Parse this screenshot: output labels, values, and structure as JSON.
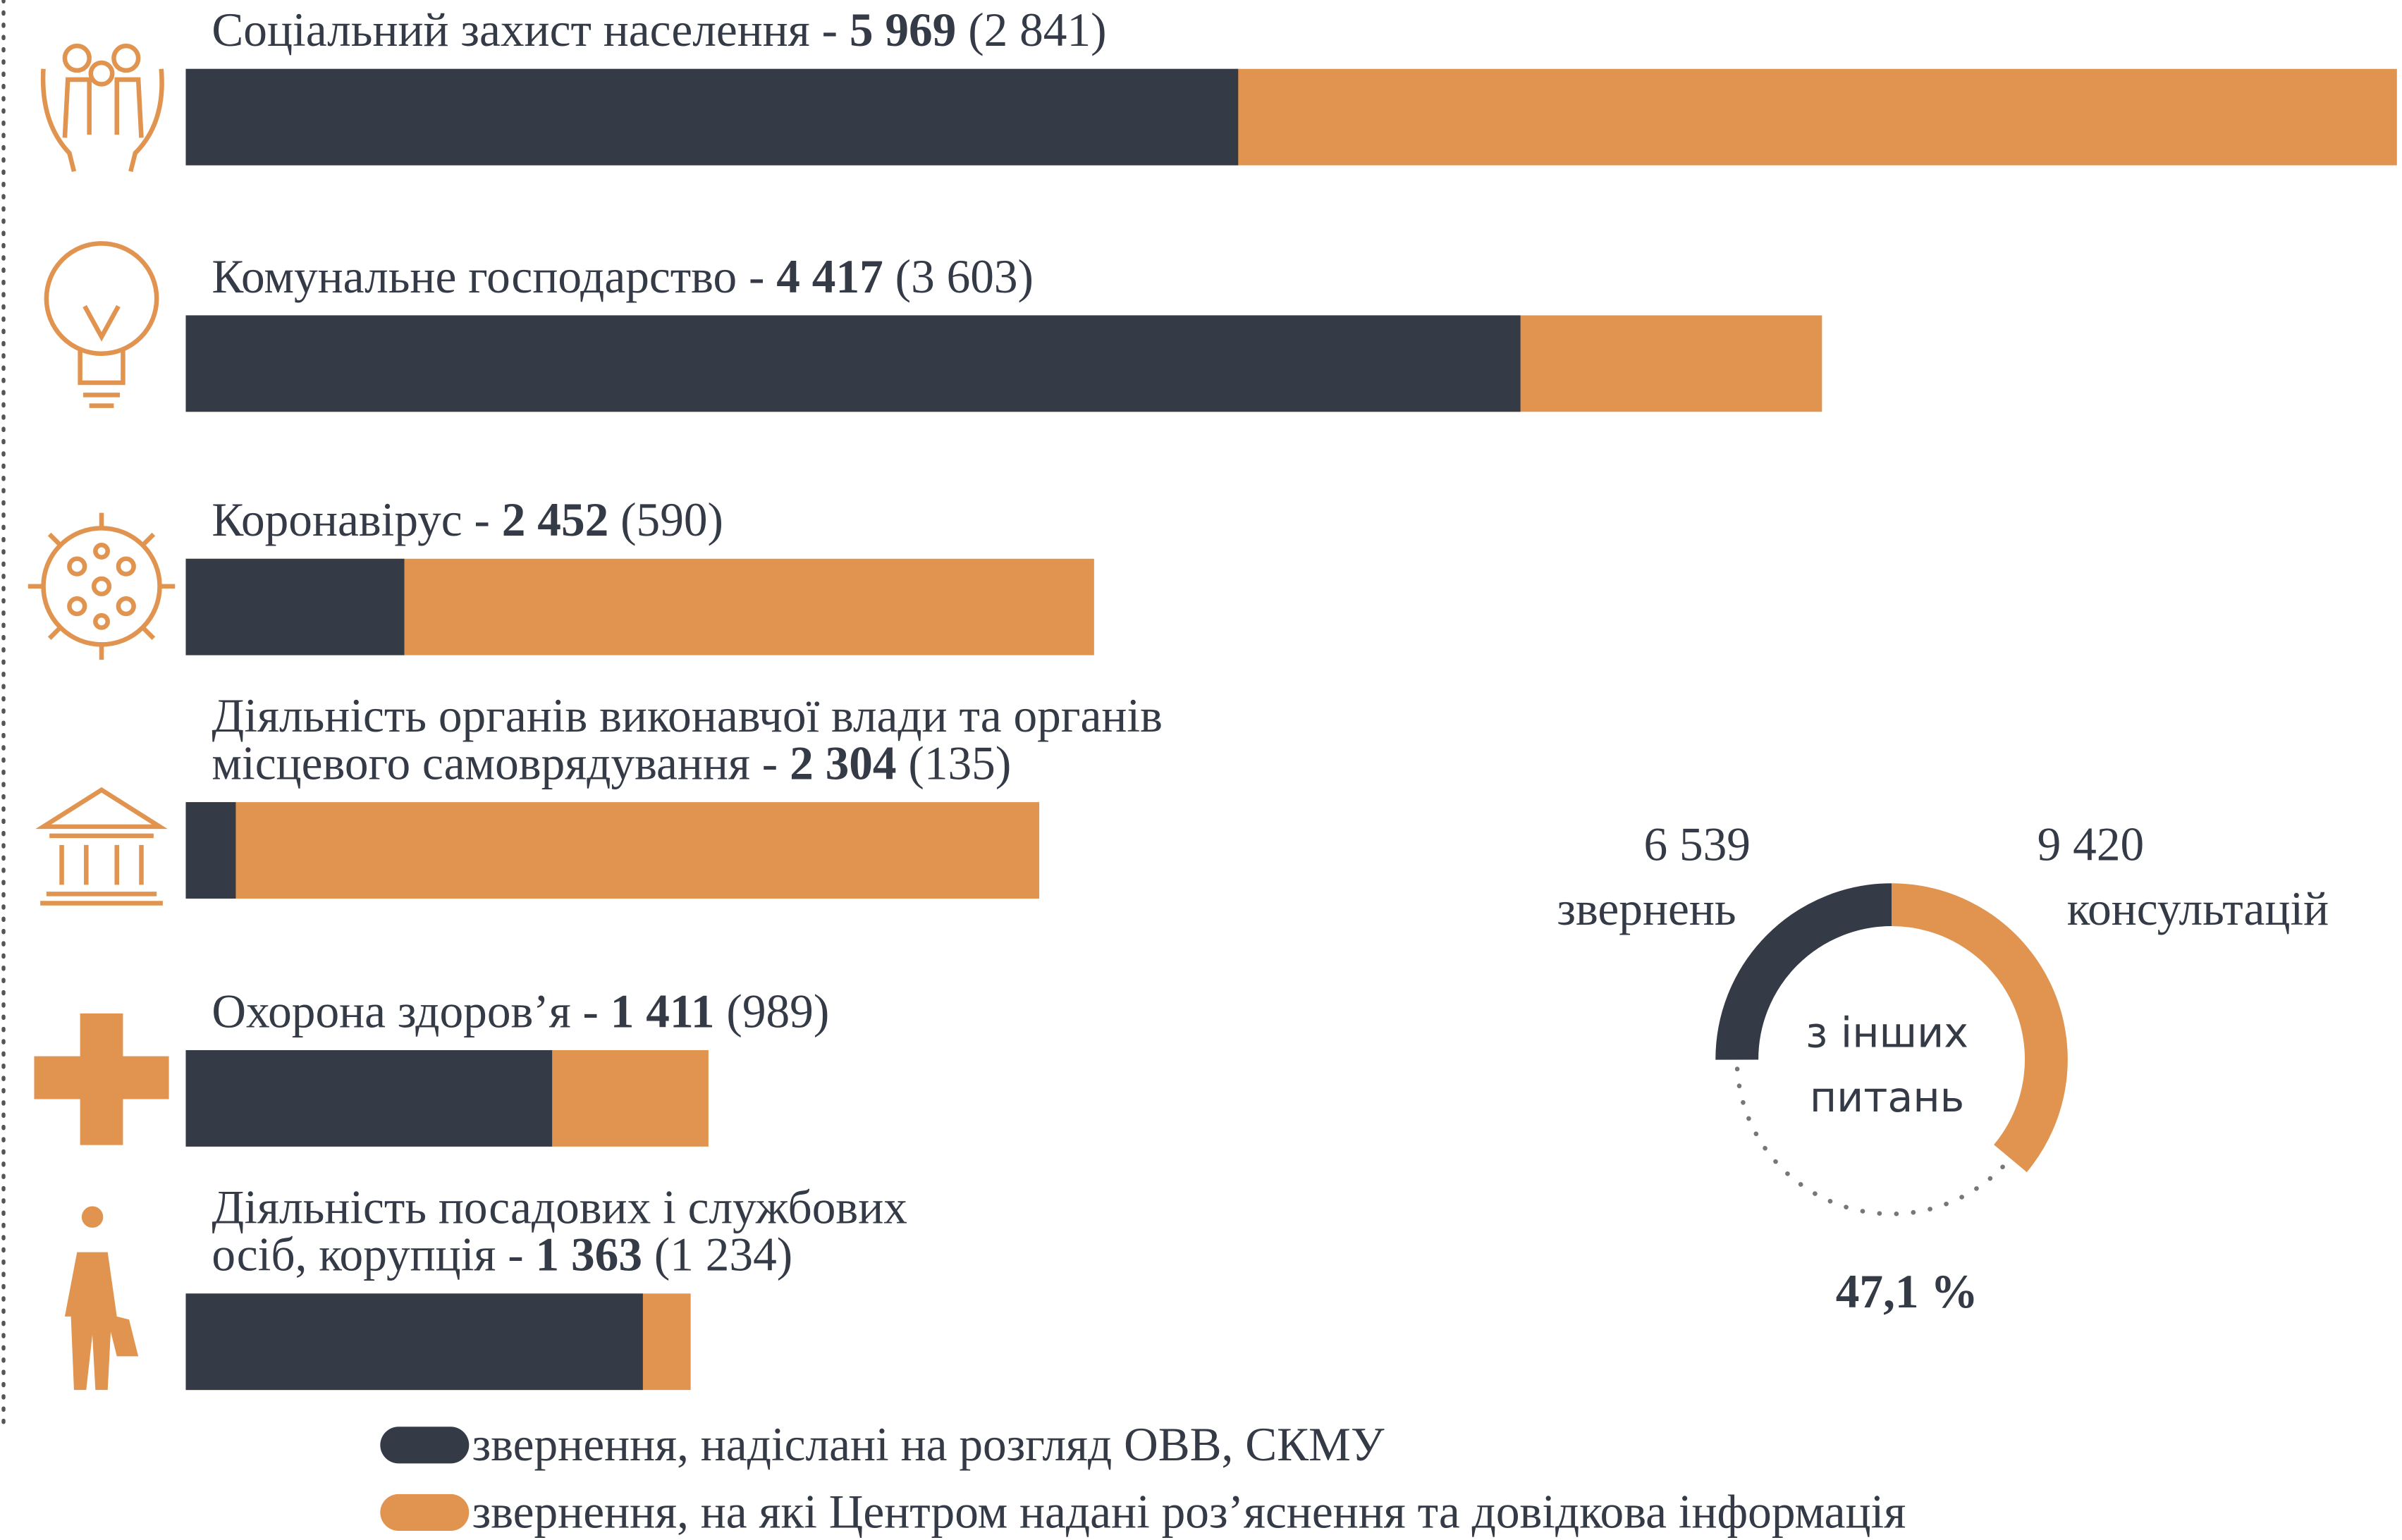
{
  "chart_data": [
    {
      "type": "bar",
      "orientation": "horizontal",
      "separator": "-",
      "categories": [
        [
          "Соціальний захист населення"
        ],
        [
          "Комунальне господарство"
        ],
        [
          "Коронавірус"
        ],
        [
          "Діяльність органів виконавчої влади та органів",
          "місцевого самоврядування"
        ],
        [
          "Охорона здоров’я"
        ],
        [
          "Діяльність посадових і службових",
          "осіб, корупція"
        ]
      ],
      "series": [
        {
          "name": "звернення, надіслані на розгляд ОВВ, СКМУ",
          "color": "#343a46",
          "values": [
            2841,
            3603,
            590,
            135,
            989,
            1234
          ],
          "value_labels": [
            "(2 841)",
            "(3 603)",
            "(590)",
            "(135)",
            "(989)",
            "(1 234)"
          ]
        },
        {
          "name": "звернення, на які Центром надані роз’яснення та довідкова інформація",
          "color": "#e0944f",
          "values": [
            5969,
            4417,
            2452,
            2304,
            1411,
            1363
          ],
          "value_labels": [
            "5 969",
            "4 417",
            "2 452",
            "2 304",
            "1 411",
            "1 363"
          ]
        }
      ],
      "xlim": [
        0,
        5969
      ]
    },
    {
      "type": "donut",
      "segments": [
        {
          "value": 6539,
          "value_label": "6 539",
          "label": "звернень",
          "color": "#343a46"
        },
        {
          "value": 9420,
          "value_label": "9 420",
          "label": "консультацій",
          "color": "#e0944f"
        }
      ],
      "center_label": [
        "з інших",
        "питань"
      ],
      "percent": 47.1,
      "percent_label": "47,1 %"
    }
  ]
}
